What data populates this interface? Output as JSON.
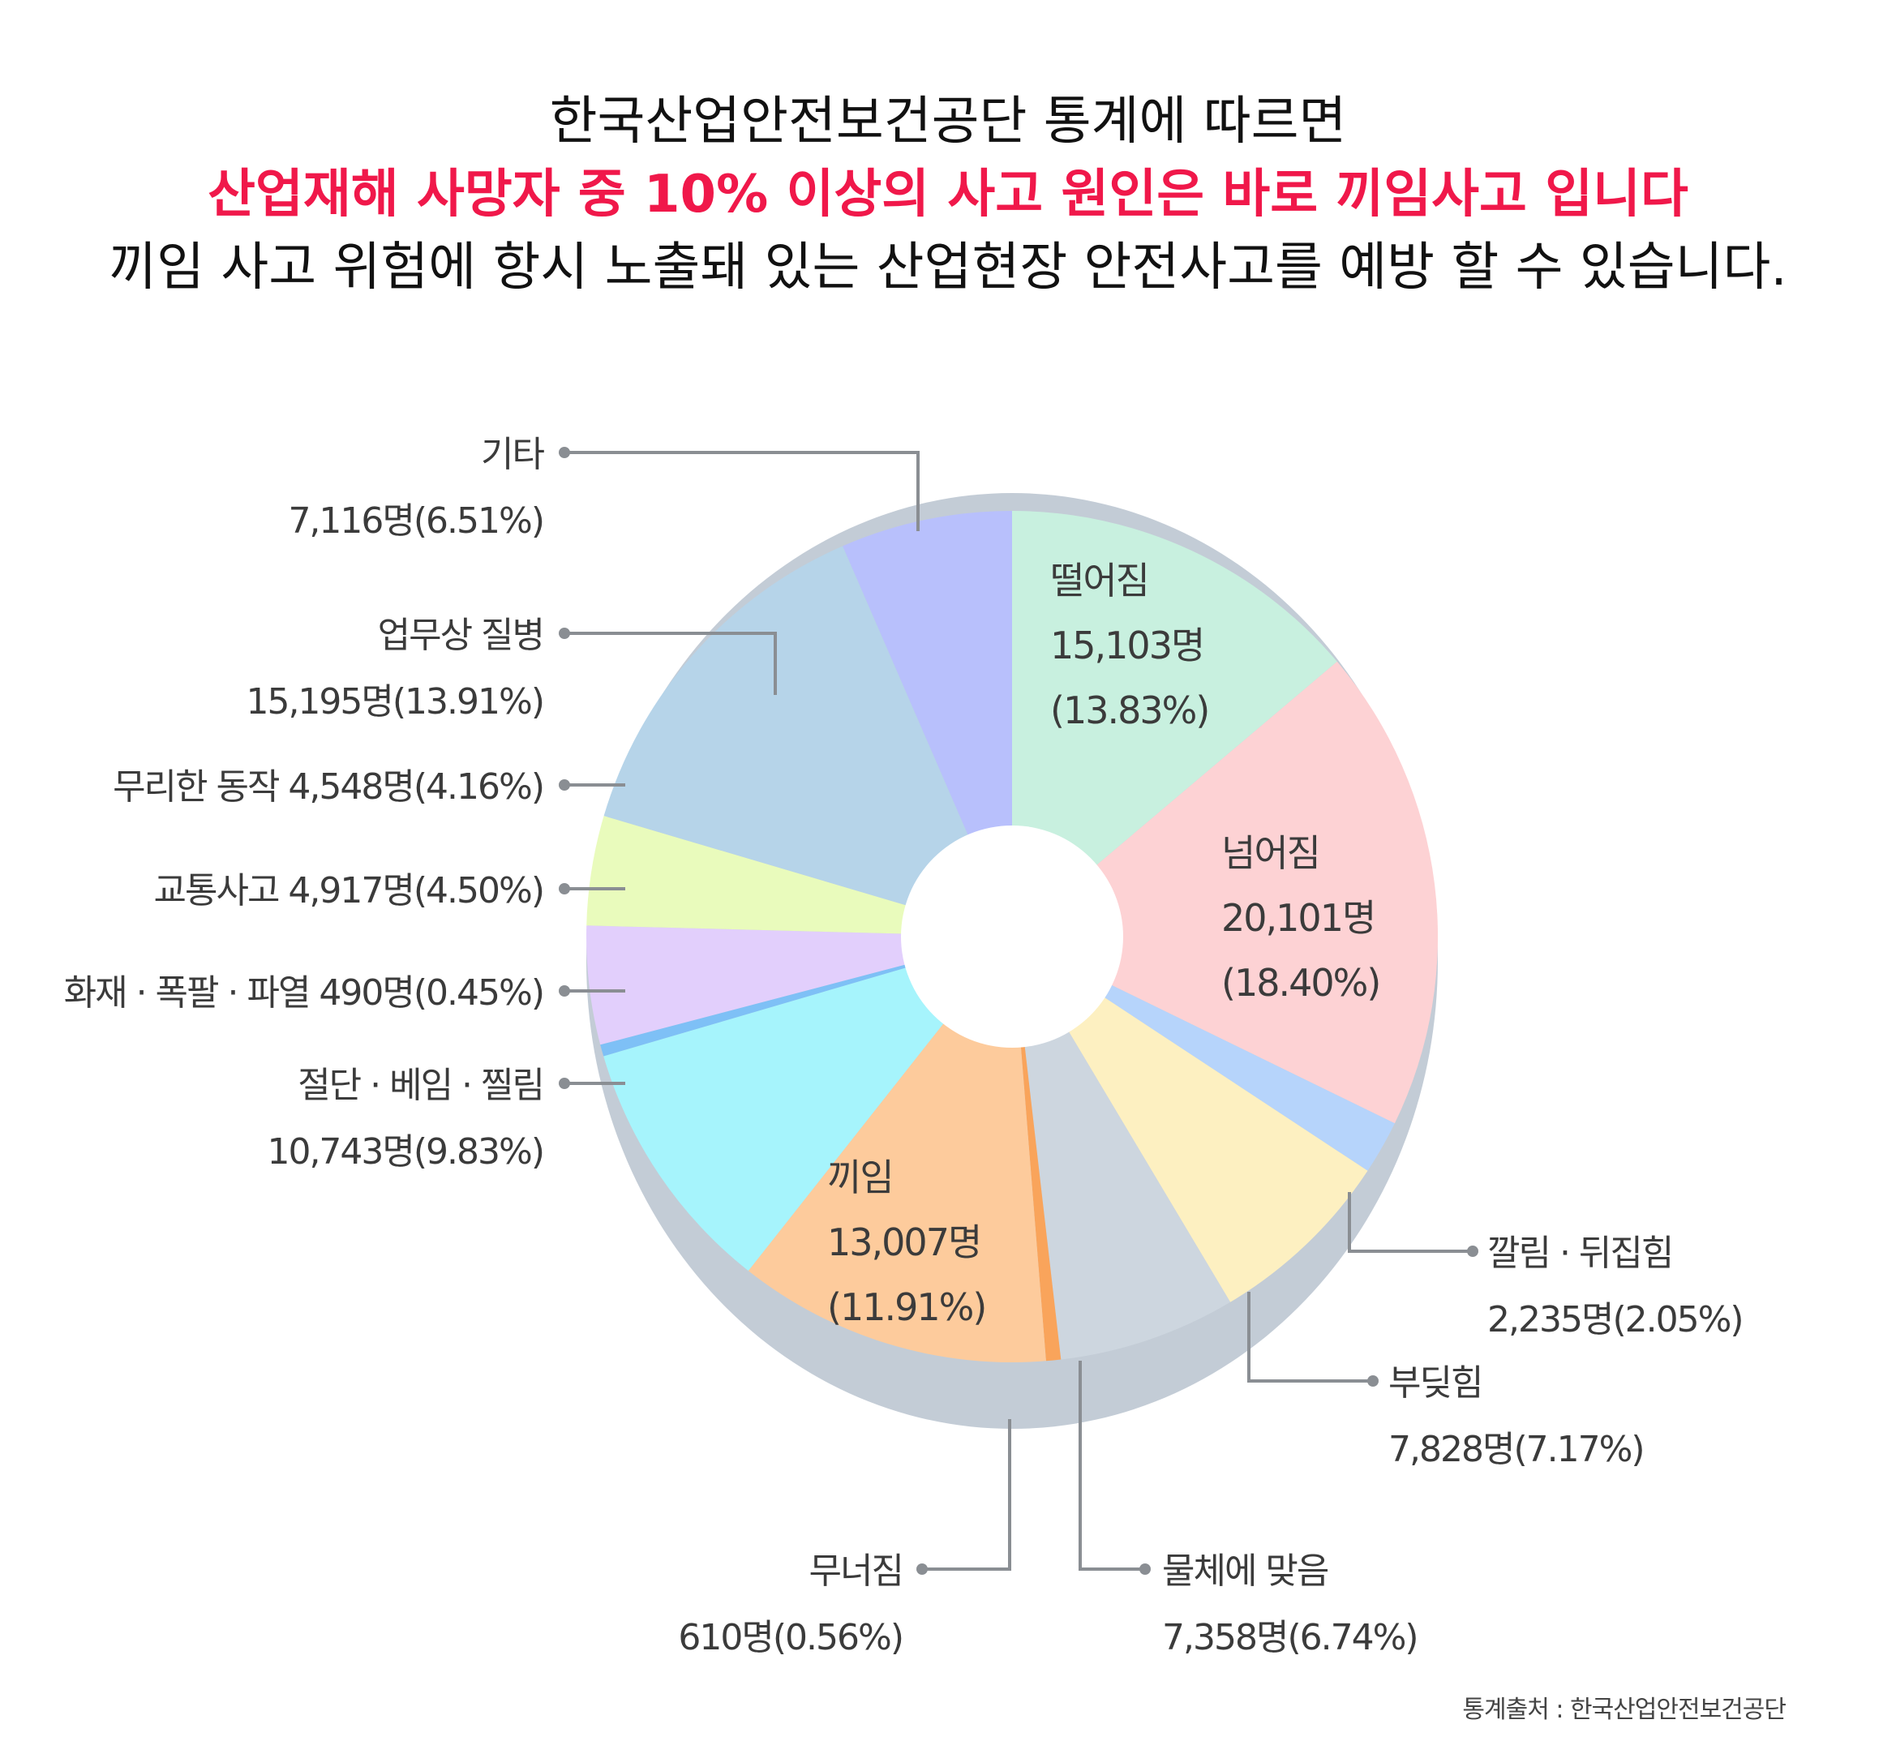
{
  "headline": {
    "line1": "한국산업안전보건공단 통계에 따르면",
    "line2": "산업재해 사망자 중 10% 이상의 사고 원인은 바로 끼임사고 입니다",
    "line3": "끼임 사고 위험에 항시 노출돼 있는 산업현장 안전사고를 예방 할 수 있습니다."
  },
  "colors": {
    "highlight": "#f0184a",
    "leader_line": "#8a8e93",
    "base_rim": "#c3ccd6"
  },
  "source": "통계출처 : 한국산업안전보건공단",
  "chart_data": {
    "type": "pie",
    "variant": "donut",
    "title": "",
    "categories": [
      "떨어짐",
      "넘어짐",
      "깔림 · 뒤집힘",
      "부딪힘",
      "물체에 맞음",
      "무너짐",
      "끼임",
      "절단 · 베임 · 찔림",
      "화재 · 폭팔 · 파열",
      "교통사고",
      "무리한 동작",
      "업무상 질병",
      "기타"
    ],
    "values": [
      15103,
      20101,
      2235,
      7828,
      7358,
      610,
      13007,
      10743,
      490,
      4917,
      4548,
      15195,
      7116
    ],
    "value_labels": [
      "15,103명",
      "20,101명",
      "2,235명",
      "7,828명",
      "7,358명",
      "610명",
      "13,007명",
      "10,743명",
      "490명",
      "4,917명",
      "4,548명",
      "15,195명",
      "7,116명"
    ],
    "percent_labels": [
      "(13.83%)",
      "(18.40%)",
      "(2.05%)",
      "(7.17%)",
      "(6.74%)",
      "(0.56%)",
      "(11.91%)",
      "(9.83%)",
      "(0.45%)",
      "(4.50%)",
      "(4.16%)",
      "(13.91%)",
      "(6.51%)"
    ],
    "slice_colors": [
      "#c8f0df",
      "#fdd2d4",
      "#b6d4fb",
      "#fdf0c1",
      "#cdd6df",
      "#f9a45b",
      "#fdcb9c",
      "#a6f4fc",
      "#7ec0f6",
      "#e2cffc",
      "#e9fbbc",
      "#b6d4e9",
      "#b8c0fc"
    ],
    "label_placement": [
      "inside",
      "inside",
      "outside",
      "outside",
      "outside",
      "outside",
      "inside",
      "outside",
      "outside",
      "outside",
      "outside",
      "outside",
      "outside"
    ],
    "legend": false
  }
}
